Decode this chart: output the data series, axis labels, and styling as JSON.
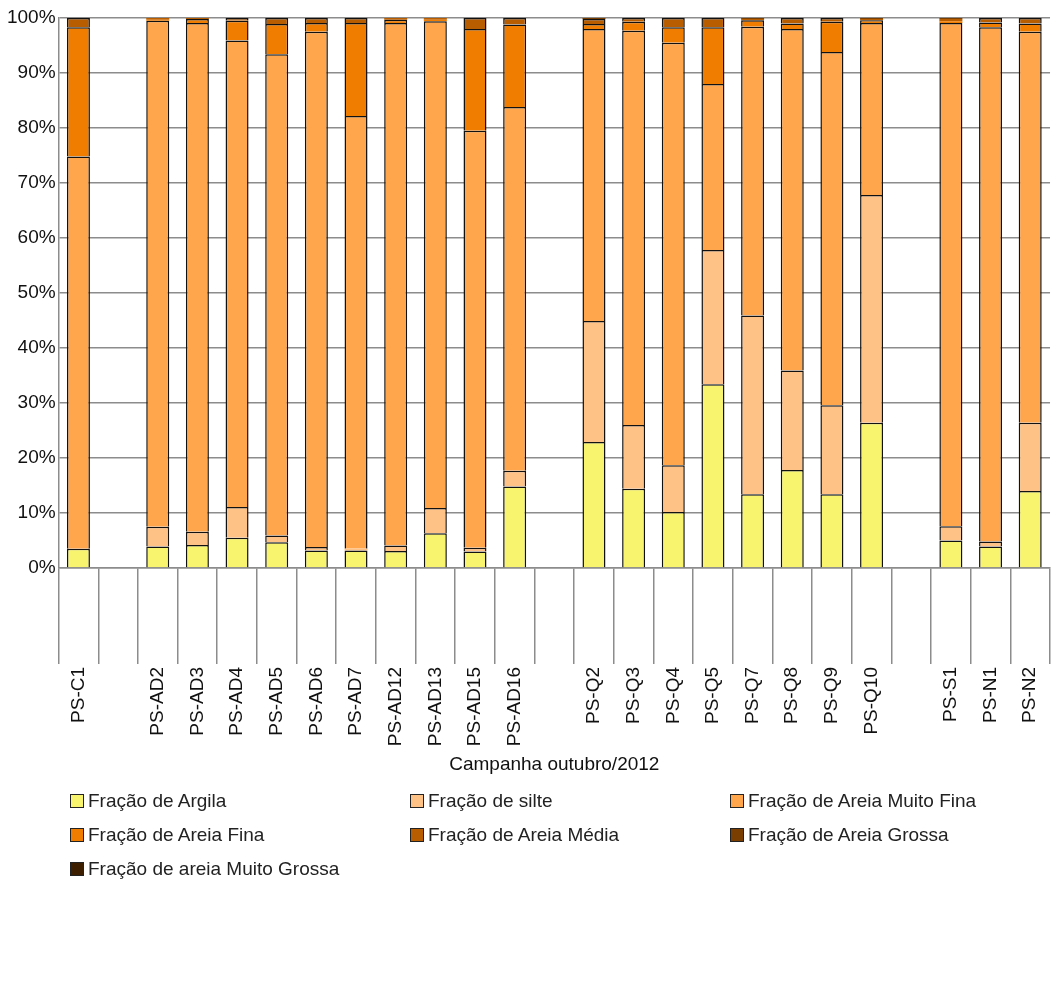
{
  "chart_data": {
    "type": "bar",
    "stacked": true,
    "xlabel": "Campanha outubro/2012",
    "categories": [
      "PS-C1",
      null,
      "PS-AD2",
      "PS-AD3",
      "PS-AD4",
      "PS-AD5",
      "PS-AD6",
      "PS-AD7",
      "PS-AD12",
      "PS-AD13",
      "PS-AD15",
      "PS-AD16",
      null,
      "PS-Q2",
      "PS-Q3",
      "PS-Q4",
      "PS-Q5",
      "PS-Q7",
      "PS-Q8",
      "PS-Q9",
      "PS-Q10",
      null,
      "PS-S1",
      "PS-N1",
      "PS-N2"
    ],
    "series": [
      {
        "name": "Fração de Argila",
        "color": "#f8f46e",
        "values": [
          3.5,
          null,
          3.9,
          4.2,
          5.5,
          4.7,
          3.2,
          3.2,
          3.1,
          6.3,
          3.0,
          14.8,
          null,
          22.9,
          14.4,
          10.2,
          33.4,
          13.4,
          17.8,
          13.4,
          26.4,
          null,
          5.0,
          3.9,
          14.0
        ]
      },
      {
        "name": "Fração de silte",
        "color": "#ffc286",
        "values": [
          0,
          null,
          3.6,
          2.4,
          5.6,
          1.2,
          0.6,
          0.3,
          1.0,
          4.6,
          0.7,
          2.9,
          null,
          22.0,
          11.6,
          8.5,
          24.4,
          32.5,
          18.1,
          16.2,
          41.4,
          null,
          2.6,
          0.9,
          12.4
        ]
      },
      {
        "name": "Fração de Areia Muito Fina",
        "color": "#ffa64d",
        "values": [
          71.3,
          null,
          92.0,
          92.5,
          84.8,
          87.5,
          93.7,
          78.7,
          95.0,
          88.5,
          75.8,
          66.1,
          null,
          53.1,
          71.7,
          76.8,
          30.2,
          52.5,
          62.1,
          64.2,
          31.3,
          null,
          91.5,
          93.5,
          71.1
        ]
      },
      {
        "name": "Fração de Areia Fina",
        "color": "#f07c00",
        "values": [
          23.5,
          null,
          0.2,
          0.7,
          3.6,
          5.5,
          1.6,
          16.9,
          0.6,
          0.3,
          18.5,
          15.0,
          null,
          0.9,
          1.6,
          2.8,
          10.3,
          1.2,
          1.0,
          5.5,
          0.5,
          null,
          0.3,
          0.9,
          1.5
        ]
      },
      {
        "name": "Fração de Areia Média",
        "color": "#b85d00",
        "values": [
          1.7,
          null,
          0.3,
          0.2,
          0.5,
          1.1,
          0.9,
          0.9,
          0.3,
          0.3,
          2.0,
          1.2,
          null,
          0.9,
          0.7,
          1.7,
          1.7,
          0.2,
          1.0,
          0.7,
          0.2,
          null,
          0.4,
          0.8,
          1.0
        ]
      },
      {
        "name": "Fração de Areia Grossa",
        "color": "#7a3e00",
        "values": [
          0,
          null,
          0,
          0,
          0,
          0,
          0,
          0,
          0,
          0,
          0,
          0,
          null,
          0.2,
          0,
          0,
          0,
          0.2,
          0,
          0,
          0.2,
          null,
          0.2,
          0,
          0
        ]
      },
      {
        "name": "Fração de areia Muito Grossa",
        "color": "#3d1f00",
        "values": [
          0,
          null,
          0,
          0,
          0,
          0,
          0,
          0,
          0,
          0,
          0,
          0,
          null,
          0,
          0,
          0,
          0,
          0,
          0,
          0,
          0,
          null,
          0,
          0,
          0
        ]
      }
    ],
    "ylim": [
      0,
      100
    ],
    "yticks": [
      {
        "value": 0,
        "label": "0%"
      },
      {
        "value": 10,
        "label": "10%"
      },
      {
        "value": 20,
        "label": "20%"
      },
      {
        "value": 30,
        "label": "30%"
      },
      {
        "value": 40,
        "label": "40%"
      },
      {
        "value": 50,
        "label": "50%"
      },
      {
        "value": 60,
        "label": "60%"
      },
      {
        "value": 70,
        "label": "70%"
      },
      {
        "value": 80,
        "label": "80%"
      },
      {
        "value": 90,
        "label": "90%"
      },
      {
        "value": 100,
        "label": "100%"
      }
    ],
    "grid": "y",
    "legend": "bottom"
  }
}
